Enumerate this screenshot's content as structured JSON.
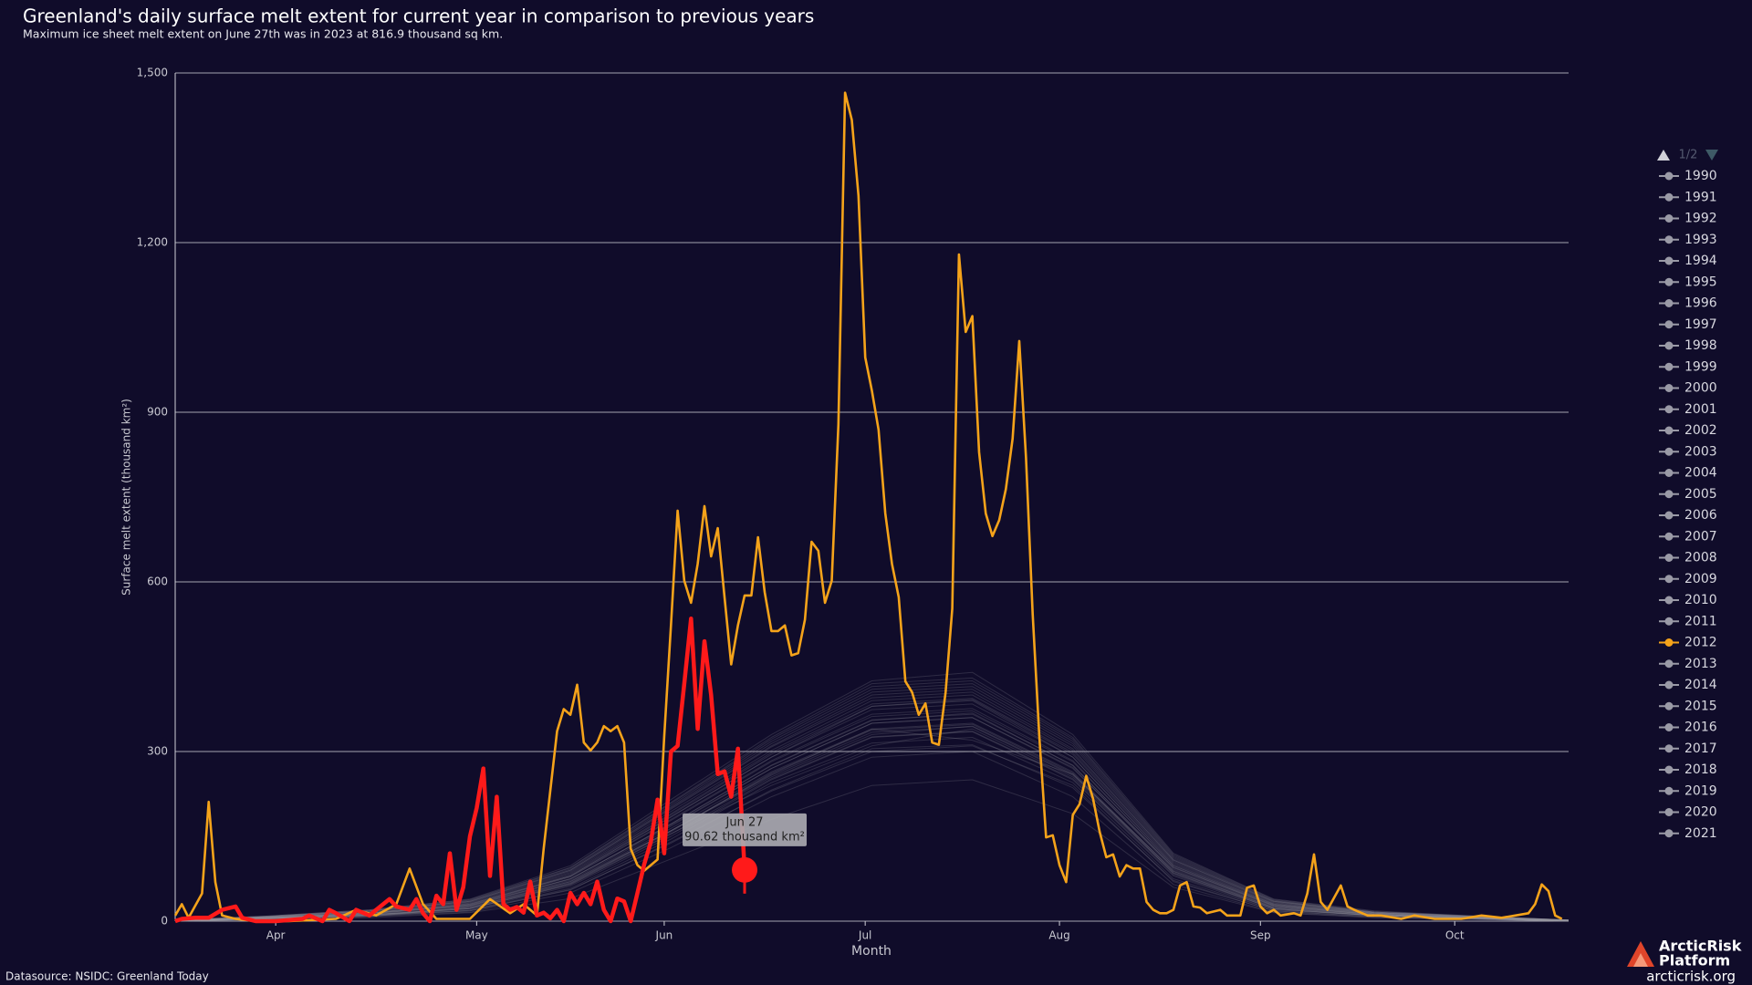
{
  "chart_data": {
    "type": "line",
    "title": "Greenland's daily surface melt extent for current year in comparison to previous years",
    "subtitle": "Maximum ice sheet melt extent on June 27th was in 2023 at 816.9 thousand sq km.",
    "y_label": "Surface melt extent (thousand km²)",
    "x_label": "Month",
    "source": "Datasource: NSIDC: Greenland Today",
    "brand": [
      "ArcticRisk",
      "Platform"
    ],
    "brand_url": "arcticrisk.org",
    "legend_page": "1/2",
    "xlim": [
      76,
      284
    ],
    "xticks": [
      {
        "value": 91,
        "label": "Apr"
      },
      {
        "value": 121,
        "label": "May"
      },
      {
        "value": 149,
        "label": "Jun"
      },
      {
        "value": 179,
        "label": "Jul"
      },
      {
        "value": 208,
        "label": "Aug"
      },
      {
        "value": 238,
        "label": "Sep"
      },
      {
        "value": 267,
        "label": "Oct"
      }
    ],
    "ylim": [
      0,
      1500
    ],
    "yticks": [
      0,
      300,
      600,
      900,
      {
        "value": 1200,
        "label": "1,200"
      },
      {
        "value": 1500,
        "label": "1,500"
      }
    ],
    "grid": true,
    "x": [
      76,
      90,
      105,
      120,
      135,
      150,
      165,
      180,
      195,
      210,
      225,
      240,
      255,
      270,
      284
    ],
    "series": [
      {
        "name": "1990",
        "color": "#9a9aa6",
        "values": [
          0,
          4,
          12,
          18,
          55,
          140,
          230,
          300,
          310,
          240,
          70,
          18,
          8,
          4,
          0
        ]
      },
      {
        "name": "1991",
        "color": "#9a9aa6",
        "values": [
          2,
          6,
          8,
          25,
          70,
          160,
          260,
          340,
          320,
          260,
          90,
          25,
          12,
          6,
          1
        ]
      },
      {
        "name": "1992",
        "color": "#9a9aa6",
        "values": [
          0,
          3,
          6,
          15,
          40,
          110,
          180,
          240,
          250,
          190,
          60,
          15,
          6,
          3,
          0
        ]
      },
      {
        "name": "1993",
        "color": "#9a9aa6",
        "values": [
          1,
          5,
          10,
          22,
          65,
          155,
          240,
          310,
          340,
          255,
          85,
          22,
          9,
          5,
          0
        ]
      },
      {
        "name": "1994",
        "color": "#9a9aa6",
        "values": [
          0,
          4,
          9,
          19,
          58,
          145,
          245,
          315,
          325,
          245,
          75,
          20,
          10,
          4,
          0
        ]
      },
      {
        "name": "1995",
        "color": "#9a9aa6",
        "values": [
          0,
          6,
          14,
          28,
          75,
          170,
          270,
          350,
          360,
          270,
          95,
          28,
          12,
          6,
          2
        ]
      },
      {
        "name": "1996",
        "color": "#9a9aa6",
        "values": [
          0,
          3,
          8,
          16,
          50,
          130,
          220,
          290,
          300,
          220,
          65,
          16,
          7,
          3,
          0
        ]
      },
      {
        "name": "1997",
        "color": "#9a9aa6",
        "values": [
          1,
          5,
          11,
          24,
          68,
          160,
          255,
          330,
          345,
          260,
          88,
          24,
          11,
          5,
          0
        ]
      },
      {
        "name": "1998",
        "color": "#9a9aa6",
        "values": [
          0,
          7,
          15,
          30,
          80,
          185,
          290,
          380,
          390,
          290,
          100,
          30,
          14,
          7,
          1
        ]
      },
      {
        "name": "1999",
        "color": "#9a9aa6",
        "values": [
          0,
          4,
          10,
          20,
          62,
          150,
          250,
          325,
          335,
          250,
          80,
          20,
          10,
          5,
          0
        ]
      },
      {
        "name": "2000",
        "color": "#9a9aa6",
        "values": [
          0,
          5,
          12,
          22,
          66,
          158,
          262,
          338,
          348,
          262,
          84,
          22,
          10,
          5,
          0
        ]
      },
      {
        "name": "2001",
        "color": "#9a9aa6",
        "values": [
          0,
          4,
          9,
          18,
          56,
          138,
          232,
          305,
          312,
          236,
          72,
          18,
          8,
          4,
          0
        ]
      },
      {
        "name": "2002",
        "color": "#9a9aa6",
        "values": [
          2,
          8,
          18,
          35,
          90,
          200,
          310,
          400,
          410,
          310,
          110,
          35,
          16,
          8,
          2
        ]
      },
      {
        "name": "2003",
        "color": "#9a9aa6",
        "values": [
          1,
          6,
          13,
          27,
          74,
          172,
          275,
          355,
          368,
          275,
          96,
          27,
          12,
          6,
          1
        ]
      },
      {
        "name": "2004",
        "color": "#9a9aa6",
        "values": [
          0,
          6,
          14,
          28,
          78,
          178,
          282,
          362,
          372,
          282,
          98,
          28,
          13,
          6,
          1
        ]
      },
      {
        "name": "2005",
        "color": "#9a9aa6",
        "values": [
          1,
          7,
          15,
          31,
          82,
          188,
          295,
          380,
          392,
          295,
          104,
          31,
          14,
          7,
          1
        ]
      },
      {
        "name": "2006",
        "color": "#9a9aa6",
        "values": [
          0,
          6,
          13,
          26,
          72,
          168,
          270,
          350,
          360,
          272,
          92,
          26,
          12,
          6,
          1
        ]
      },
      {
        "name": "2007",
        "color": "#9a9aa6",
        "values": [
          1,
          8,
          17,
          34,
          88,
          198,
          308,
          395,
          405,
          305,
          108,
          34,
          15,
          8,
          2
        ]
      },
      {
        "name": "2008",
        "color": "#9a9aa6",
        "values": [
          0,
          6,
          14,
          29,
          79,
          180,
          284,
          366,
          376,
          284,
          98,
          29,
          13,
          6,
          1
        ]
      },
      {
        "name": "2009",
        "color": "#9a9aa6",
        "values": [
          0,
          5,
          11,
          23,
          67,
          160,
          258,
          334,
          344,
          258,
          86,
          23,
          10,
          5,
          0
        ]
      },
      {
        "name": "2010",
        "color": "#9a9aa6",
        "values": [
          2,
          9,
          20,
          38,
          95,
          210,
          325,
          420,
          430,
          325,
          118,
          38,
          17,
          9,
          2
        ]
      },
      {
        "name": "2011",
        "color": "#9a9aa6",
        "values": [
          1,
          8,
          18,
          36,
          92,
          205,
          318,
          410,
          420,
          318,
          114,
          36,
          16,
          8,
          2
        ]
      },
      {
        "name": "2012",
        "color": "#f5a31a",
        "x": [
          76,
          77,
          78,
          80,
          81,
          82,
          83,
          85,
          88,
          93,
          100,
          103,
          106,
          109,
          111,
          113,
          115,
          120,
          123,
          126,
          128,
          130,
          131,
          133,
          134,
          135,
          136,
          137,
          138,
          139,
          140,
          141,
          142,
          143,
          144,
          145,
          146,
          148,
          149,
          150,
          151,
          152,
          153,
          154,
          155,
          156,
          157,
          158,
          159,
          160,
          161,
          162,
          163,
          164,
          165,
          166,
          167,
          168,
          169,
          170,
          171,
          172,
          173,
          174,
          175,
          176,
          177,
          178,
          179,
          180,
          181,
          182,
          183,
          184,
          185,
          186,
          187,
          188,
          189,
          190,
          191,
          192,
          193,
          194,
          195,
          196,
          197,
          198,
          199,
          200,
          201,
          202,
          203,
          204,
          205,
          206,
          207,
          208,
          209,
          210,
          211,
          212,
          213,
          214,
          215,
          216,
          217,
          218,
          219,
          220,
          221,
          222,
          223,
          224,
          225,
          226,
          227,
          228,
          229,
          230,
          232,
          233,
          235,
          236,
          237,
          238,
          239,
          240,
          241,
          243,
          244,
          245,
          246,
          247,
          248,
          250,
          251,
          252,
          254,
          256,
          259,
          261,
          264,
          268,
          271,
          274,
          278,
          279,
          280,
          281,
          282,
          283
        ],
        "values": [
          10,
          30,
          6,
          49,
          211,
          69,
          10,
          4,
          0,
          0,
          4,
          20,
          10,
          30,
          93,
          30,
          4,
          4,
          39,
          14,
          30,
          10,
          128,
          336,
          375,
          365,
          418,
          316,
          302,
          316,
          345,
          336,
          345,
          316,
          128,
          99,
          89,
          109,
          326,
          523,
          726,
          602,
          563,
          632,
          734,
          645,
          695,
          573,
          454,
          523,
          576,
          576,
          679,
          582,
          513,
          513,
          523,
          470,
          474,
          533,
          671,
          655,
          563,
          602,
          878,
          1465,
          1417,
          1283,
          997,
          938,
          869,
          721,
          632,
          573,
          424,
          405,
          365,
          385,
          316,
          312,
          405,
          553,
          1179,
          1042,
          1070,
          829,
          721,
          681,
          709,
          764,
          853,
          1026,
          819,
          543,
          326,
          148,
          152,
          99,
          69,
          188,
          207,
          257,
          217,
          158,
          113,
          118,
          79,
          99,
          93,
          93,
          34,
          20,
          14,
          14,
          20,
          63,
          69,
          26,
          24,
          14,
          20,
          10,
          10,
          59,
          63,
          26,
          14,
          20,
          10,
          14,
          10,
          49,
          118,
          34,
          20,
          63,
          26,
          20,
          10,
          10,
          4,
          10,
          4,
          4,
          10,
          6,
          14,
          30,
          65,
          53,
          10,
          4
        ]
      },
      {
        "name": "2013",
        "color": "#9a9aa6",
        "values": [
          0,
          6,
          13,
          27,
          75,
          172,
          276,
          356,
          366,
          276,
          94,
          27,
          12,
          6,
          1
        ]
      },
      {
        "name": "2014",
        "color": "#9a9aa6",
        "values": [
          1,
          7,
          16,
          32,
          84,
          190,
          298,
          384,
          394,
          298,
          106,
          32,
          14,
          7,
          1
        ]
      },
      {
        "name": "2015",
        "color": "#9a9aa6",
        "values": [
          1,
          8,
          17,
          33,
          86,
          194,
          302,
          390,
          400,
          302,
          108,
          33,
          15,
          8,
          2
        ]
      },
      {
        "name": "2016",
        "color": "#9a9aa6",
        "values": [
          2,
          9,
          19,
          37,
          94,
          208,
          322,
          415,
          425,
          322,
          116,
          37,
          16,
          9,
          2
        ]
      },
      {
        "name": "2017",
        "color": "#9a9aa6",
        "values": [
          0,
          5,
          12,
          24,
          70,
          164,
          264,
          340,
          350,
          264,
          88,
          24,
          11,
          5,
          0
        ]
      },
      {
        "name": "2018",
        "color": "#9a9aa6",
        "values": [
          0,
          5,
          11,
          22,
          64,
          154,
          252,
          326,
          336,
          252,
          82,
          22,
          10,
          5,
          0
        ]
      },
      {
        "name": "2019",
        "color": "#9a9aa6",
        "values": [
          2,
          9,
          20,
          39,
          98,
          215,
          330,
          425,
          440,
          330,
          120,
          39,
          18,
          9,
          2
        ]
      },
      {
        "name": "2020",
        "color": "#9a9aa6",
        "values": [
          1,
          7,
          15,
          30,
          80,
          184,
          290,
          374,
          384,
          290,
          102,
          30,
          13,
          7,
          1
        ]
      },
      {
        "name": "2021",
        "color": "#9a9aa6",
        "values": [
          1,
          8,
          18,
          35,
          90,
          202,
          314,
          405,
          415,
          314,
          112,
          35,
          15,
          8,
          2
        ]
      }
    ],
    "current": {
      "color": "#ff1a1a",
      "x": [
        76,
        77,
        79,
        81,
        83,
        85,
        86,
        88,
        91,
        95,
        96,
        98,
        99,
        100,
        102,
        103,
        105,
        106,
        108,
        109,
        111,
        112,
        113,
        114,
        115,
        116,
        117,
        118,
        119,
        120,
        121,
        122,
        123,
        124,
        125,
        126,
        127,
        128,
        129,
        130,
        131,
        132,
        133,
        134,
        135,
        136,
        137,
        138,
        139,
        140,
        141,
        142,
        143,
        144,
        145,
        146,
        147,
        148,
        149,
        150,
        151,
        152,
        153,
        154,
        155,
        156,
        157,
        158,
        159,
        160,
        161
      ],
      "values": [
        0,
        4,
        6,
        6,
        20,
        26,
        6,
        0,
        0,
        4,
        10,
        0,
        20,
        14,
        0,
        20,
        10,
        20,
        39,
        26,
        20,
        39,
        14,
        0,
        45,
        30,
        120,
        20,
        60,
        150,
        200,
        270,
        80,
        220,
        30,
        20,
        25,
        15,
        70,
        10,
        15,
        5,
        20,
        0,
        50,
        30,
        50,
        30,
        70,
        20,
        0,
        40,
        35,
        0,
        50,
        100,
        140,
        215,
        120,
        300,
        310,
        420,
        535,
        340,
        495,
        400,
        260,
        265,
        220,
        305,
        90.62
      ]
    },
    "tooltip": {
      "date": "Jun 27",
      "text": "90.62 thousand km²"
    }
  }
}
